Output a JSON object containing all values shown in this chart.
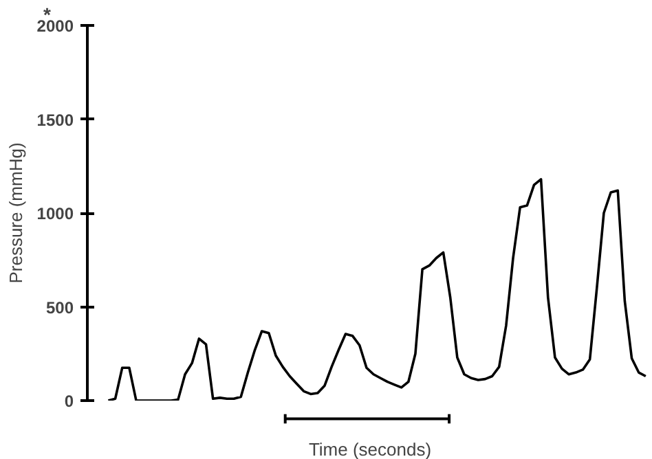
{
  "chart_data": {
    "type": "line",
    "ylabel": "Pressure (mmHg)",
    "xlabel": "Time (seconds)",
    "annotations": [
      "*"
    ],
    "ylim": [
      0,
      2000
    ],
    "yticks": [
      0,
      500,
      1000,
      1500,
      2000
    ],
    "grid": false,
    "line_style": "solid",
    "marker": "none",
    "categories": [
      null,
      null,
      null,
      null,
      null,
      null,
      null,
      null,
      null,
      null,
      null,
      null,
      null,
      null,
      null,
      null,
      null,
      null,
      null,
      null,
      null,
      null,
      null,
      null,
      null,
      null,
      null,
      null,
      null,
      null,
      null,
      null,
      null,
      null,
      null,
      null,
      null,
      null,
      null,
      null,
      null,
      null,
      null,
      null,
      null,
      null,
      null,
      null,
      null,
      null,
      null,
      null,
      null,
      null,
      null,
      null,
      null,
      null,
      null,
      null,
      null,
      null,
      null,
      null,
      null,
      null,
      null,
      null,
      null,
      null,
      null,
      null,
      null,
      null,
      null,
      null,
      null,
      null
    ],
    "series": [
      {
        "color": "#000000",
        "values": [
          0,
          10,
          175,
          175,
          0,
          0,
          0,
          0,
          0,
          0,
          5,
          140,
          200,
          330,
          300,
          10,
          15,
          10,
          10,
          20,
          150,
          270,
          370,
          360,
          240,
          180,
          130,
          90,
          50,
          35,
          40,
          80,
          180,
          270,
          355,
          345,
          295,
          175,
          140,
          120,
          100,
          85,
          70,
          100,
          250,
          700,
          720,
          760,
          790,
          550,
          230,
          140,
          120,
          110,
          115,
          130,
          180,
          400,
          760,
          1030,
          1040,
          1150,
          1180,
          550,
          230,
          170,
          140,
          150,
          165,
          220,
          600,
          1000,
          1110,
          1120,
          530,
          225,
          150,
          130
        ]
      }
    ]
  }
}
